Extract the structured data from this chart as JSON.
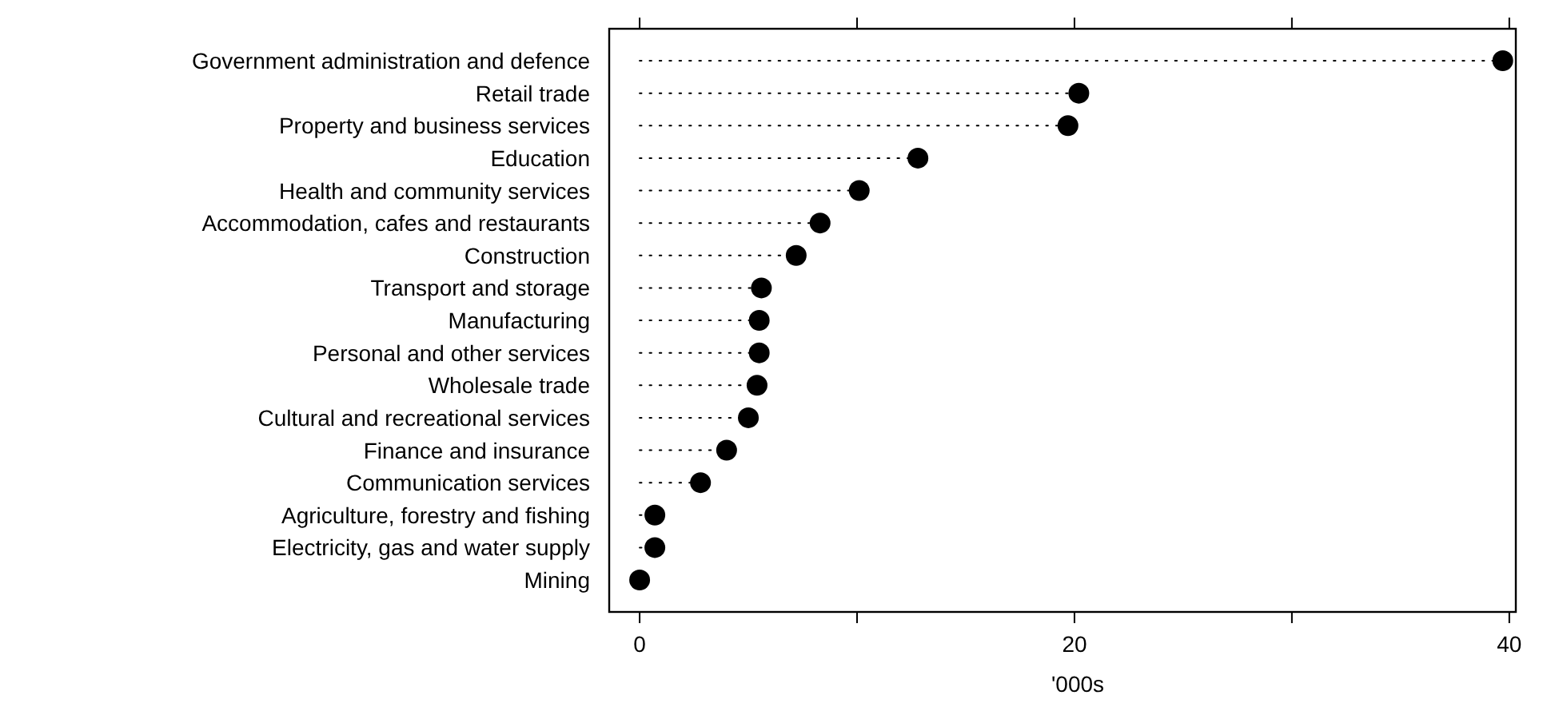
{
  "chart_data": {
    "type": "lollipop",
    "orientation": "horizontal",
    "xlabel": "'000s",
    "categories": [
      "Government administration and defence",
      "Retail trade",
      "Property and business services",
      "Education",
      "Health and community services",
      "Accommodation, cafes and restaurants",
      "Construction",
      "Transport and storage",
      "Manufacturing",
      "Personal and other services",
      "Wholesale trade",
      "Cultural and recreational services",
      "Finance and insurance",
      "Communication services",
      "Agriculture, forestry and fishing",
      "Electricity, gas and water supply",
      "Mining"
    ],
    "values": [
      39.7,
      20.2,
      19.7,
      12.8,
      10.1,
      8.3,
      7.2,
      5.6,
      5.5,
      5.5,
      5.4,
      5.0,
      4.0,
      2.8,
      0.7,
      0.7,
      0
    ],
    "color": "#000000",
    "marker": "circle",
    "line_style": "dotted",
    "xlim": [
      -1.4,
      40.3
    ],
    "xticks": [
      0,
      {
        "value": 10,
        "label": null
      },
      20,
      {
        "value": 30,
        "label": null
      },
      40
    ]
  }
}
